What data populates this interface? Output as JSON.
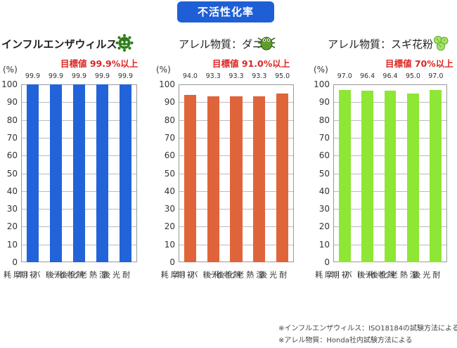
{
  "banner": "不活性化率",
  "chart_data": [
    {
      "type": "bar",
      "title": "インフルエンザウィルス",
      "target": "目標値 99.9%以上",
      "ylabel": "(%)",
      "ylim": [
        0,
        100
      ],
      "yticks": [
        "0",
        "10",
        "20",
        "30",
        "40",
        "50",
        "60",
        "70",
        "80",
        "90",
        "100"
      ],
      "categories": [
        "初期",
        "テーバー摩耗",
        "熱老化後",
        "湿熱老化後",
        "耐光後"
      ],
      "values": [
        99.9,
        99.9,
        99.9,
        99.9,
        99.9
      ],
      "value_labels": [
        "99.9",
        "99.9",
        "99.9",
        "99.9",
        "99.9"
      ],
      "color": "#2363d9",
      "icon": "virus-icon"
    },
    {
      "type": "bar",
      "title": "アレル物質：ダニ",
      "target": "目標値 91.0%以上",
      "ylabel": "(%)",
      "ylim": [
        0,
        100
      ],
      "yticks": [
        "0",
        "10",
        "20",
        "30",
        "40",
        "50",
        "60",
        "70",
        "80",
        "90",
        "100"
      ],
      "categories": [
        "初期",
        "テーバー摩耗",
        "熱老化後",
        "湿熱老化後",
        "耐光後"
      ],
      "values": [
        94.0,
        93.3,
        93.3,
        93.3,
        95.0
      ],
      "value_labels": [
        "94.0",
        "93.3",
        "93.3",
        "93.3",
        "95.0"
      ],
      "color": "#e0643a",
      "icon": "mite-icon"
    },
    {
      "type": "bar",
      "title": "アレル物質：スギ花粉",
      "target": "目標値 70%以上",
      "ylabel": "(%)",
      "ylim": [
        0,
        100
      ],
      "yticks": [
        "0",
        "10",
        "20",
        "30",
        "40",
        "50",
        "60",
        "70",
        "80",
        "90",
        "100"
      ],
      "categories": [
        "初期",
        "テーバー摩耗",
        "熱老化後",
        "湿熱老化後",
        "耐光後"
      ],
      "values": [
        97.0,
        96.4,
        96.4,
        95.0,
        97.0
      ],
      "value_labels": [
        "97.0",
        "96.4",
        "96.4",
        "95.0",
        "97.0"
      ],
      "color": "#8ee635",
      "icon": "pollen-icon"
    }
  ],
  "footnotes": [
    "※インフルエンザウィルス：ISO18184の試験方法による",
    "※アレル物質：Honda社内試験方法による"
  ]
}
